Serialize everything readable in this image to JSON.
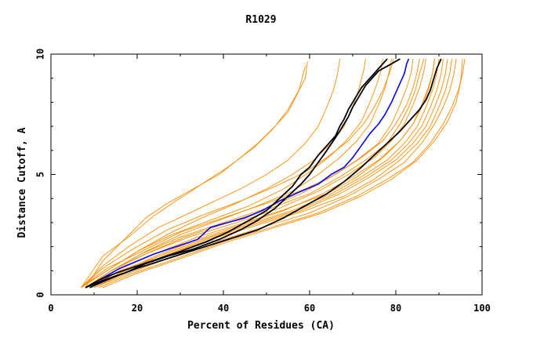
{
  "chart_data": {
    "type": "line",
    "title": "R1029",
    "xlabel": "Percent of Residues (CA)",
    "ylabel": "Distance Cutoff, A",
    "xlim": [
      0,
      100
    ],
    "ylim": [
      0,
      10
    ],
    "x_ticks": [
      "0",
      "20",
      "40",
      "60",
      "80",
      "100"
    ],
    "y_ticks": [
      "0",
      "5",
      "10"
    ],
    "grid": false,
    "legend": "none",
    "colors": {
      "models": "#ff8c00",
      "highlight_blue": "#0000ff",
      "highlight_black": "#000000",
      "axes": "#000000"
    },
    "series": [
      {
        "group": "orange",
        "x": [
          7,
          12,
          18,
          24,
          29,
          35,
          41,
          47,
          51,
          55,
          57,
          59,
          59.5
        ],
        "y": [
          0.3,
          1.6,
          2.4,
          3.3,
          3.9,
          4.6,
          5.3,
          6.1,
          6.8,
          7.6,
          8.3,
          9.0,
          9.7
        ]
      },
      {
        "group": "orange",
        "x": [
          8,
          12,
          17,
          22,
          27,
          33,
          39,
          44,
          48,
          52,
          55,
          57.5,
          59
        ],
        "y": [
          0.3,
          1.4,
          2.3,
          3.2,
          3.8,
          4.4,
          5.0,
          5.7,
          6.3,
          7.0,
          7.7,
          8.5,
          9.5
        ]
      },
      {
        "group": "orange",
        "x": [
          7,
          12,
          18,
          25,
          31,
          38,
          44,
          50,
          55,
          59,
          62,
          64,
          65.5,
          66.5,
          67
        ],
        "y": [
          0.3,
          1.2,
          2.0,
          2.8,
          3.3,
          3.9,
          4.4,
          5.0,
          5.6,
          6.3,
          7.0,
          7.8,
          8.5,
          9.2,
          9.8
        ]
      },
      {
        "group": "orange",
        "x": [
          7,
          13,
          20,
          28,
          35,
          43,
          50,
          56,
          61,
          65,
          68,
          70,
          71.5,
          72.5,
          73
        ],
        "y": [
          0.3,
          1.0,
          1.8,
          2.6,
          3.2,
          3.8,
          4.4,
          5.0,
          5.6,
          6.3,
          7.0,
          7.8,
          8.6,
          9.3,
          9.8
        ]
      },
      {
        "group": "orange",
        "x": [
          7,
          13,
          20,
          28,
          37,
          46,
          54,
          60,
          65,
          69,
          72,
          74,
          75.5,
          76.5,
          77
        ],
        "y": [
          0.3,
          1.0,
          1.8,
          2.5,
          3.1,
          3.7,
          4.4,
          5.1,
          5.8,
          6.5,
          7.2,
          8.0,
          8.7,
          9.3,
          9.8
        ]
      },
      {
        "group": "orange",
        "x": [
          8,
          14,
          22,
          30,
          39,
          48,
          56,
          62,
          67,
          71,
          74,
          76,
          77.5,
          78.5,
          79
        ],
        "y": [
          0.3,
          1.0,
          1.8,
          2.5,
          3.1,
          3.7,
          4.3,
          5.0,
          5.7,
          6.4,
          7.1,
          7.9,
          8.6,
          9.3,
          9.8
        ]
      },
      {
        "group": "orange",
        "x": [
          7,
          12,
          19,
          27,
          35,
          44,
          52,
          59,
          64,
          69,
          72.5,
          75,
          77,
          78.5,
          79.5
        ],
        "y": [
          0.3,
          1.1,
          1.9,
          2.7,
          3.3,
          3.9,
          4.5,
          5.1,
          5.7,
          6.4,
          7.1,
          7.8,
          8.5,
          9.2,
          9.8
        ]
      },
      {
        "group": "orange",
        "x": [
          8,
          14,
          21,
          30,
          40,
          50,
          58,
          65,
          71,
          76,
          79,
          81,
          82.5,
          83.5,
          84
        ],
        "y": [
          0.3,
          1.0,
          1.7,
          2.4,
          3.0,
          3.6,
          4.2,
          4.9,
          5.6,
          6.3,
          7.1,
          7.9,
          8.6,
          9.2,
          9.8
        ]
      },
      {
        "group": "orange",
        "x": [
          8,
          14,
          22,
          31,
          41,
          51,
          60,
          67,
          73,
          78,
          81,
          83,
          84.5,
          85.5,
          86.5
        ],
        "y": [
          0.3,
          1.0,
          1.7,
          2.4,
          3.0,
          3.6,
          4.2,
          4.9,
          5.6,
          6.3,
          7.1,
          7.8,
          8.5,
          9.2,
          9.8
        ]
      },
      {
        "group": "orange",
        "x": [
          9,
          16,
          24,
          34,
          44,
          54,
          63,
          70,
          76,
          81,
          84,
          86,
          87.5,
          88.5,
          89
        ],
        "y": [
          0.3,
          0.9,
          1.6,
          2.3,
          2.9,
          3.5,
          4.2,
          4.9,
          5.6,
          6.4,
          7.1,
          7.9,
          8.6,
          9.2,
          9.8
        ]
      },
      {
        "group": "orange",
        "x": [
          9,
          16,
          25,
          35,
          45,
          56,
          65,
          72,
          78,
          82,
          85,
          87,
          88.5,
          89.5,
          90
        ],
        "y": [
          0.3,
          0.9,
          1.6,
          2.3,
          2.9,
          3.5,
          4.2,
          4.9,
          5.6,
          6.3,
          7.0,
          7.8,
          8.5,
          9.2,
          9.8
        ]
      },
      {
        "group": "orange",
        "x": [
          8,
          15,
          24,
          34,
          45,
          55,
          64,
          71,
          77,
          81,
          84,
          86,
          87.5,
          88.5,
          89
        ],
        "y": [
          0.3,
          1.0,
          1.7,
          2.4,
          3.0,
          3.6,
          4.2,
          4.9,
          5.7,
          6.4,
          7.1,
          7.8,
          8.5,
          9.2,
          9.8
        ]
      },
      {
        "group": "orange",
        "x": [
          10,
          17,
          26,
          36,
          47,
          58,
          67,
          74,
          80,
          84,
          87,
          89,
          90.5,
          91.5,
          92
        ],
        "y": [
          0.3,
          0.9,
          1.6,
          2.3,
          2.9,
          3.5,
          4.2,
          4.9,
          5.6,
          6.3,
          7.0,
          7.8,
          8.5,
          9.2,
          9.8
        ]
      },
      {
        "group": "orange",
        "x": [
          10,
          18,
          27,
          38,
          49,
          60,
          69,
          76,
          82,
          86,
          89,
          91,
          92.5,
          93.5,
          94
        ],
        "y": [
          0.3,
          0.9,
          1.5,
          2.2,
          2.8,
          3.4,
          4.1,
          4.8,
          5.5,
          6.3,
          7.1,
          7.8,
          8.5,
          9.2,
          9.8
        ]
      },
      {
        "group": "orange",
        "x": [
          11,
          19,
          29,
          40,
          51,
          62,
          71,
          78,
          84,
          88,
          91,
          93,
          94.5,
          95.5,
          96
        ],
        "y": [
          0.3,
          0.9,
          1.5,
          2.2,
          2.8,
          3.4,
          4.1,
          4.8,
          5.5,
          6.3,
          7.1,
          7.8,
          8.5,
          9.2,
          9.8
        ]
      },
      {
        "group": "orange",
        "x": [
          8,
          14,
          22,
          32,
          43,
          53,
          62,
          69,
          75,
          79,
          82,
          84,
          85.5,
          86.5,
          87
        ],
        "y": [
          0.3,
          1.0,
          1.7,
          2.4,
          3.0,
          3.6,
          4.3,
          5.0,
          5.7,
          6.4,
          7.1,
          7.9,
          8.6,
          9.3,
          9.8
        ]
      },
      {
        "group": "orange",
        "x": [
          9,
          16,
          25,
          35,
          46,
          57,
          66,
          73,
          79,
          83,
          86,
          88,
          89.5,
          90.5,
          91
        ],
        "y": [
          0.3,
          1.0,
          1.6,
          2.3,
          2.9,
          3.5,
          4.2,
          4.9,
          5.6,
          6.3,
          7.0,
          7.8,
          8.5,
          9.2,
          9.8
        ]
      },
      {
        "group": "orange",
        "x": [
          9,
          17,
          26,
          37,
          48,
          59,
          68,
          75,
          81,
          85,
          88,
          90,
          91.5,
          92.5,
          93
        ],
        "y": [
          0.3,
          0.9,
          1.6,
          2.3,
          2.9,
          3.5,
          4.1,
          4.8,
          5.6,
          6.3,
          7.0,
          7.8,
          8.5,
          9.2,
          9.8
        ]
      },
      {
        "group": "orange",
        "x": [
          7,
          13,
          21,
          30,
          40,
          50,
          59,
          66,
          72,
          77,
          80,
          82.5,
          84,
          85,
          85.5
        ],
        "y": [
          0.3,
          1.1,
          1.8,
          2.6,
          3.2,
          3.8,
          4.4,
          5.0,
          5.7,
          6.4,
          7.1,
          7.9,
          8.6,
          9.3,
          9.8
        ]
      },
      {
        "group": "orange",
        "x": [
          12,
          20,
          30,
          41,
          52,
          63,
          72,
          79,
          85,
          89,
          92,
          94,
          95,
          95.5
        ],
        "y": [
          0.3,
          0.9,
          1.5,
          2.2,
          2.8,
          3.4,
          4.1,
          4.8,
          5.6,
          6.4,
          7.2,
          8.0,
          8.8,
          9.8
        ]
      },
      {
        "group": "blue",
        "x": [
          9,
          12,
          16,
          20,
          24,
          29,
          34,
          37,
          41,
          45,
          49,
          53,
          58,
          62,
          65,
          68,
          70,
          72,
          74,
          76,
          77.5,
          79,
          80,
          81,
          82,
          82.5,
          83
        ],
        "y": [
          0.4,
          0.7,
          1.1,
          1.4,
          1.7,
          2.0,
          2.3,
          2.8,
          3.0,
          3.2,
          3.5,
          3.9,
          4.3,
          4.6,
          5.0,
          5.3,
          5.7,
          6.2,
          6.7,
          7.1,
          7.5,
          8.0,
          8.4,
          8.8,
          9.2,
          9.6,
          9.8
        ]
      },
      {
        "group": "black",
        "x": [
          8,
          11,
          15,
          20,
          25,
          30,
          36,
          41,
          46,
          50,
          53,
          56,
          58,
          60,
          62,
          64,
          66,
          67,
          68,
          69,
          70,
          71,
          72,
          73,
          74,
          75,
          76,
          77,
          78
        ],
        "y": [
          0.3,
          0.6,
          0.9,
          1.2,
          1.5,
          1.8,
          2.2,
          2.6,
          3.1,
          3.5,
          4.0,
          4.5,
          5.0,
          5.3,
          5.8,
          6.2,
          6.6,
          7.0,
          7.3,
          7.7,
          8.0,
          8.3,
          8.6,
          8.8,
          9.0,
          9.2,
          9.4,
          9.6,
          9.8
        ]
      },
      {
        "group": "black",
        "x": [
          8,
          12,
          17,
          22,
          27,
          33,
          39,
          44,
          48,
          52,
          55,
          58,
          60,
          62,
          64,
          65.5,
          67,
          68,
          69,
          70,
          71,
          72,
          73,
          74,
          75,
          76,
          77,
          78,
          79,
          80,
          81
        ],
        "y": [
          0.3,
          0.6,
          0.9,
          1.3,
          1.6,
          1.9,
          2.3,
          2.7,
          3.1,
          3.6,
          4.1,
          4.6,
          5.0,
          5.5,
          6.0,
          6.4,
          6.8,
          7.1,
          7.4,
          7.8,
          8.1,
          8.4,
          8.7,
          8.9,
          9.1,
          9.3,
          9.4,
          9.5,
          9.6,
          9.7,
          9.8
        ]
      },
      {
        "group": "black",
        "x": [
          9,
          14,
          20,
          27,
          34,
          41,
          48,
          54,
          59,
          64,
          68,
          72,
          75,
          78,
          81,
          83.5,
          85.5,
          87,
          88,
          88.5,
          89,
          89.5,
          90,
          90.5
        ],
        "y": [
          0.3,
          0.7,
          1.1,
          1.5,
          1.9,
          2.3,
          2.7,
          3.2,
          3.7,
          4.2,
          4.7,
          5.3,
          5.8,
          6.3,
          6.8,
          7.3,
          7.7,
          8.1,
          8.5,
          8.8,
          9.1,
          9.4,
          9.6,
          9.8
        ]
      }
    ]
  }
}
